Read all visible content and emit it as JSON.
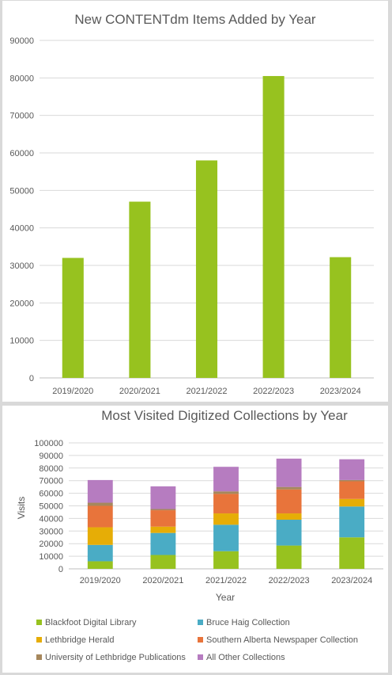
{
  "chart_data": [
    {
      "type": "bar",
      "title": "New CONTENTdm Items Added by Year",
      "categories": [
        "2019/2020",
        "2020/2021",
        "2021/2022",
        "2022/2023",
        "2023/2024"
      ],
      "values": [
        32000,
        47000,
        58000,
        80500,
        32200
      ],
      "ylim": [
        0,
        90000
      ],
      "yticks": [
        0,
        10000,
        20000,
        30000,
        40000,
        50000,
        60000,
        70000,
        80000,
        90000
      ],
      "grid": true,
      "color": "#97c21f"
    },
    {
      "type": "bar",
      "stacked": true,
      "title": "Most Visited Digitized Collections by Year",
      "xlabel": "Year",
      "ylabel": "Visits",
      "categories": [
        "2019/2020",
        "2020/2021",
        "2021/2022",
        "2022/2023",
        "2023/2024"
      ],
      "ylim": [
        0,
        100000
      ],
      "yticks": [
        0,
        10000,
        20000,
        30000,
        40000,
        50000,
        60000,
        70000,
        80000,
        90000,
        100000
      ],
      "grid": true,
      "legend_position": "bottom",
      "series": [
        {
          "name": "Blackfoot Digital Library",
          "color": "#97c21f",
          "values": [
            6000,
            11000,
            14000,
            18500,
            25000
          ]
        },
        {
          "name": "Bruce Haig Collection",
          "color": "#4aacc5",
          "values": [
            13000,
            17500,
            21000,
            20500,
            24500
          ]
        },
        {
          "name": "Lethbridge Herald",
          "color": "#e6ad06",
          "values": [
            14000,
            5000,
            9000,
            5000,
            6000
          ]
        },
        {
          "name": "Southern Alberta Newspaper Collection",
          "color": "#e8743b",
          "values": [
            17000,
            13000,
            15500,
            19000,
            14000
          ]
        },
        {
          "name": "University of Lethbridge Publications",
          "color": "#a6875c",
          "values": [
            2500,
            1000,
            2000,
            2000,
            1000
          ]
        },
        {
          "name": "All Other Collections",
          "color": "#b67cc0",
          "values": [
            18000,
            18000,
            19500,
            22500,
            16500
          ]
        }
      ]
    }
  ]
}
